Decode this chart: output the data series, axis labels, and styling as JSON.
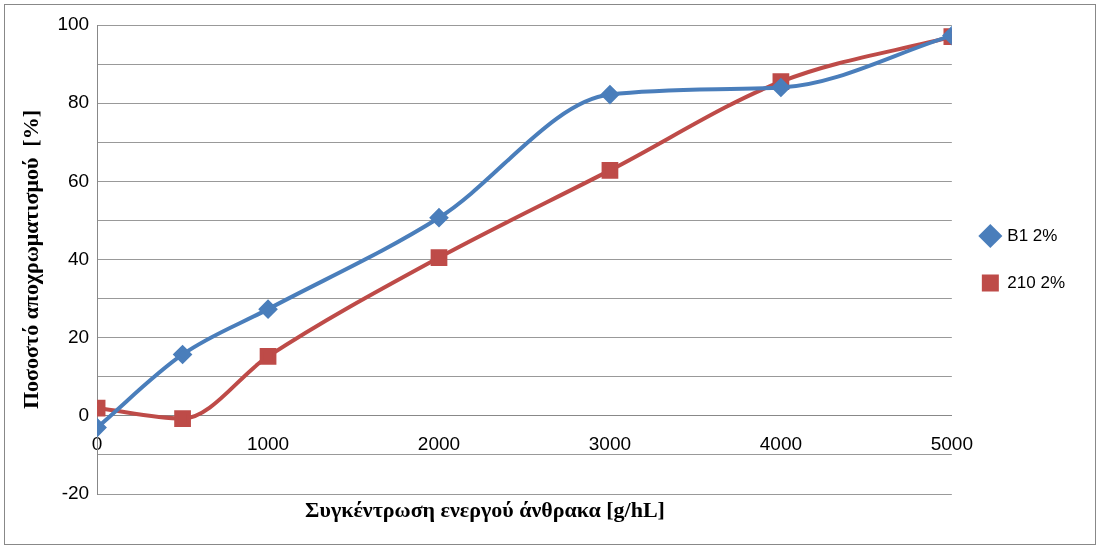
{
  "chart_data": {
    "type": "line",
    "xlabel": "Συγκέντρωση ενεργού άνθρακα [g/hL]",
    "ylabel": "Ποσοστό αποχρωματισμού  [%]",
    "x": [
      0,
      500,
      1000,
      2000,
      3000,
      4000,
      5000
    ],
    "series": [
      {
        "name": "B1 2%",
        "color": "#4a7ebb",
        "marker": "diamond",
        "values": [
          -3,
          15.7,
          27.3,
          50.7,
          82.2,
          84,
          97.3
        ]
      },
      {
        "name": "210 2%",
        "color": "#be4b48",
        "marker": "square",
        "values": [
          2,
          -0.7,
          15.2,
          40.5,
          62.8,
          85.5,
          97
        ]
      }
    ],
    "xlim": [
      0,
      5000
    ],
    "xticks": [
      0,
      1000,
      2000,
      3000,
      4000,
      5000
    ],
    "ylim": [
      -20,
      100
    ],
    "yticks": [
      -20,
      {
        "value": -10,
        "label": null
      },
      0,
      {
        "value": 10,
        "label": null
      },
      20,
      {
        "value": 30,
        "label": null
      },
      40,
      {
        "value": 50,
        "label": null
      },
      60,
      {
        "value": 70,
        "label": null
      },
      80,
      {
        "value": 90,
        "label": null
      },
      100
    ],
    "grid": "y",
    "legend": "right",
    "line_style": "solid"
  }
}
